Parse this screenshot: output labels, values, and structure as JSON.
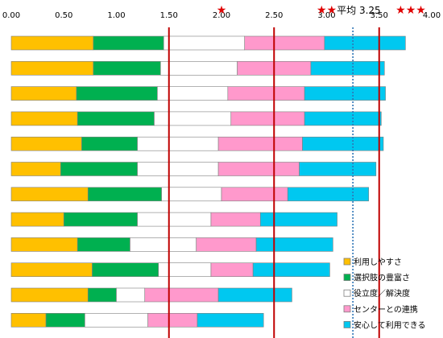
{
  "chart_data": {
    "type": "bar",
    "orientation": "horizontal",
    "stacked": true,
    "xlim": [
      0,
      4.0
    ],
    "x_ticks": [
      "0.00",
      "0.50",
      "1.00",
      "1.50",
      "2.00",
      "2.50",
      "3.00",
      "3.50",
      "4.00"
    ],
    "grid": false,
    "legend_position": "bottom-right",
    "series": [
      {
        "name": "利用しやすさ",
        "color": "#ffc000",
        "values": [
          0.78,
          0.78,
          0.62,
          0.63,
          0.67,
          0.47,
          0.73,
          0.5,
          0.63,
          0.77,
          0.73,
          0.33
        ]
      },
      {
        "name": "選択肢の豊富さ",
        "color": "#00b050",
        "values": [
          0.67,
          0.64,
          0.77,
          0.73,
          0.53,
          0.73,
          0.7,
          0.7,
          0.5,
          0.63,
          0.27,
          0.37
        ]
      },
      {
        "name": "役立度／解決度",
        "color": "#ffffff",
        "values": [
          0.77,
          0.73,
          0.67,
          0.73,
          0.77,
          0.77,
          0.57,
          0.7,
          0.63,
          0.5,
          0.27,
          0.6
        ]
      },
      {
        "name": "センターとの連携",
        "color": "#ff99cc",
        "values": [
          0.76,
          0.7,
          0.73,
          0.7,
          0.8,
          0.77,
          0.63,
          0.47,
          0.57,
          0.4,
          0.7,
          0.47
        ]
      },
      {
        "name": "安心して利用できる",
        "color": "#00c8f0",
        "values": [
          0.77,
          0.7,
          0.77,
          0.73,
          0.77,
          0.73,
          0.77,
          0.73,
          0.73,
          0.73,
          0.7,
          0.63
        ]
      }
    ],
    "reference_lines": [
      {
        "x": 1.5,
        "style": "solid",
        "color": "#c00000"
      },
      {
        "x": 2.5,
        "style": "solid",
        "color": "#c00000"
      },
      {
        "x": 3.5,
        "style": "solid",
        "color": "#c00000"
      },
      {
        "x": 3.25,
        "style": "dotted",
        "color": "#2e75b6"
      }
    ],
    "annotations": [
      {
        "text": "★",
        "x": 2.0
      },
      {
        "text": "★★",
        "x": 3.0
      },
      {
        "text": "★★★",
        "x": 4.0
      },
      {
        "text": "平均 3.25",
        "x": 3.25
      }
    ]
  }
}
